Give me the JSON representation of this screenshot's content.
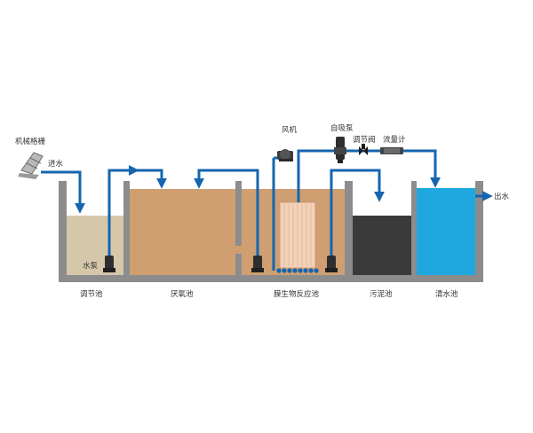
{
  "labels": {
    "bar_screen": "机械格栅",
    "inlet": "进水",
    "blower": "风机",
    "self_priming_pump": "自吸泵",
    "control_valve": "调节阀",
    "flowmeter": "流量计",
    "outlet": "出水",
    "water_pump": "水泵"
  },
  "tanks": {
    "equalization": "调节池",
    "anoxic": "厌氧池",
    "mbr": "膜生物反应池",
    "sludge": "污泥池",
    "clear_water": "清水池"
  },
  "colors": {
    "pipe": "#1565b0",
    "wall": "#8c8c8c",
    "equalization_water": "#d6c7ab",
    "anoxic_water": "#cf9f72",
    "mbr_water": "#cf9f72",
    "membrane": "#f2d2b8",
    "sludge_water": "#3a3a3a",
    "clear_water": "#1fa8e0"
  }
}
